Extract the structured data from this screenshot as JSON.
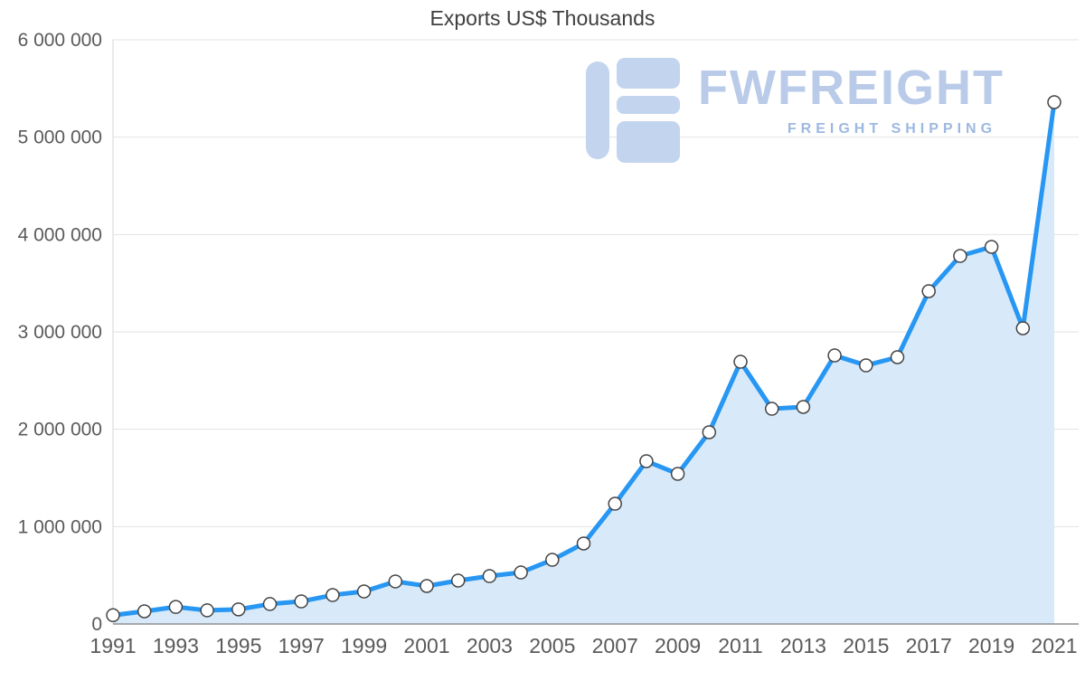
{
  "title": "Exports US$ Thousands",
  "watermark": {
    "title": "FWFREIGHT",
    "subtitle": "FREIGHT SHIPPING",
    "logo_icon": "fwfreight-logo",
    "title_color": "#b9cbe9",
    "subtitle_color": "#9db9e0",
    "logo_color": "#c3d4ee"
  },
  "colors": {
    "line": "#2797f3",
    "area_fill": "#d8eafa",
    "marker_fill": "#ffffff",
    "marker_stroke": "#444444",
    "grid": "#e3e3e3",
    "baseline": "#8f8f8f",
    "left_axis": "#d4d4d4",
    "tick_label": "#5a5a5a",
    "title_text": "#3f3f3f"
  },
  "chart_data": {
    "type": "area",
    "title": "Exports US$ Thousands",
    "x": [
      1991,
      1992,
      1993,
      1994,
      1995,
      1996,
      1997,
      1998,
      1999,
      2000,
      2001,
      2002,
      2003,
      2004,
      2005,
      2006,
      2007,
      2008,
      2009,
      2010,
      2011,
      2012,
      2013,
      2014,
      2015,
      2016,
      2017,
      2018,
      2019,
      2020,
      2021
    ],
    "values": [
      90000,
      130000,
      175000,
      140000,
      150000,
      205000,
      232000,
      297000,
      334000,
      437000,
      390000,
      446000,
      492000,
      529000,
      659000,
      827000,
      1235000,
      1672000,
      1542000,
      1969000,
      2693000,
      2210000,
      2229000,
      2758000,
      2656000,
      2740000,
      3418000,
      3780000,
      3873000,
      3037000,
      5359000
    ],
    "ylim": [
      0,
      6000000
    ],
    "y_ticks": [
      0,
      1000000,
      2000000,
      3000000,
      4000000,
      5000000,
      6000000
    ],
    "y_tick_labels": [
      "0",
      "1 000 000",
      "2 000 000",
      "3 000 000",
      "4 000 000",
      "5 000 000",
      "6 000 000"
    ],
    "x_tick_labels": [
      "1991",
      "1993",
      "1995",
      "1997",
      "1999",
      "2001",
      "2003",
      "2005",
      "2007",
      "2009",
      "2011",
      "2013",
      "2015",
      "2017",
      "2019",
      "2021"
    ],
    "x_tick_step": 2,
    "grid": true,
    "legend": "none",
    "xlabel": "",
    "ylabel": ""
  }
}
